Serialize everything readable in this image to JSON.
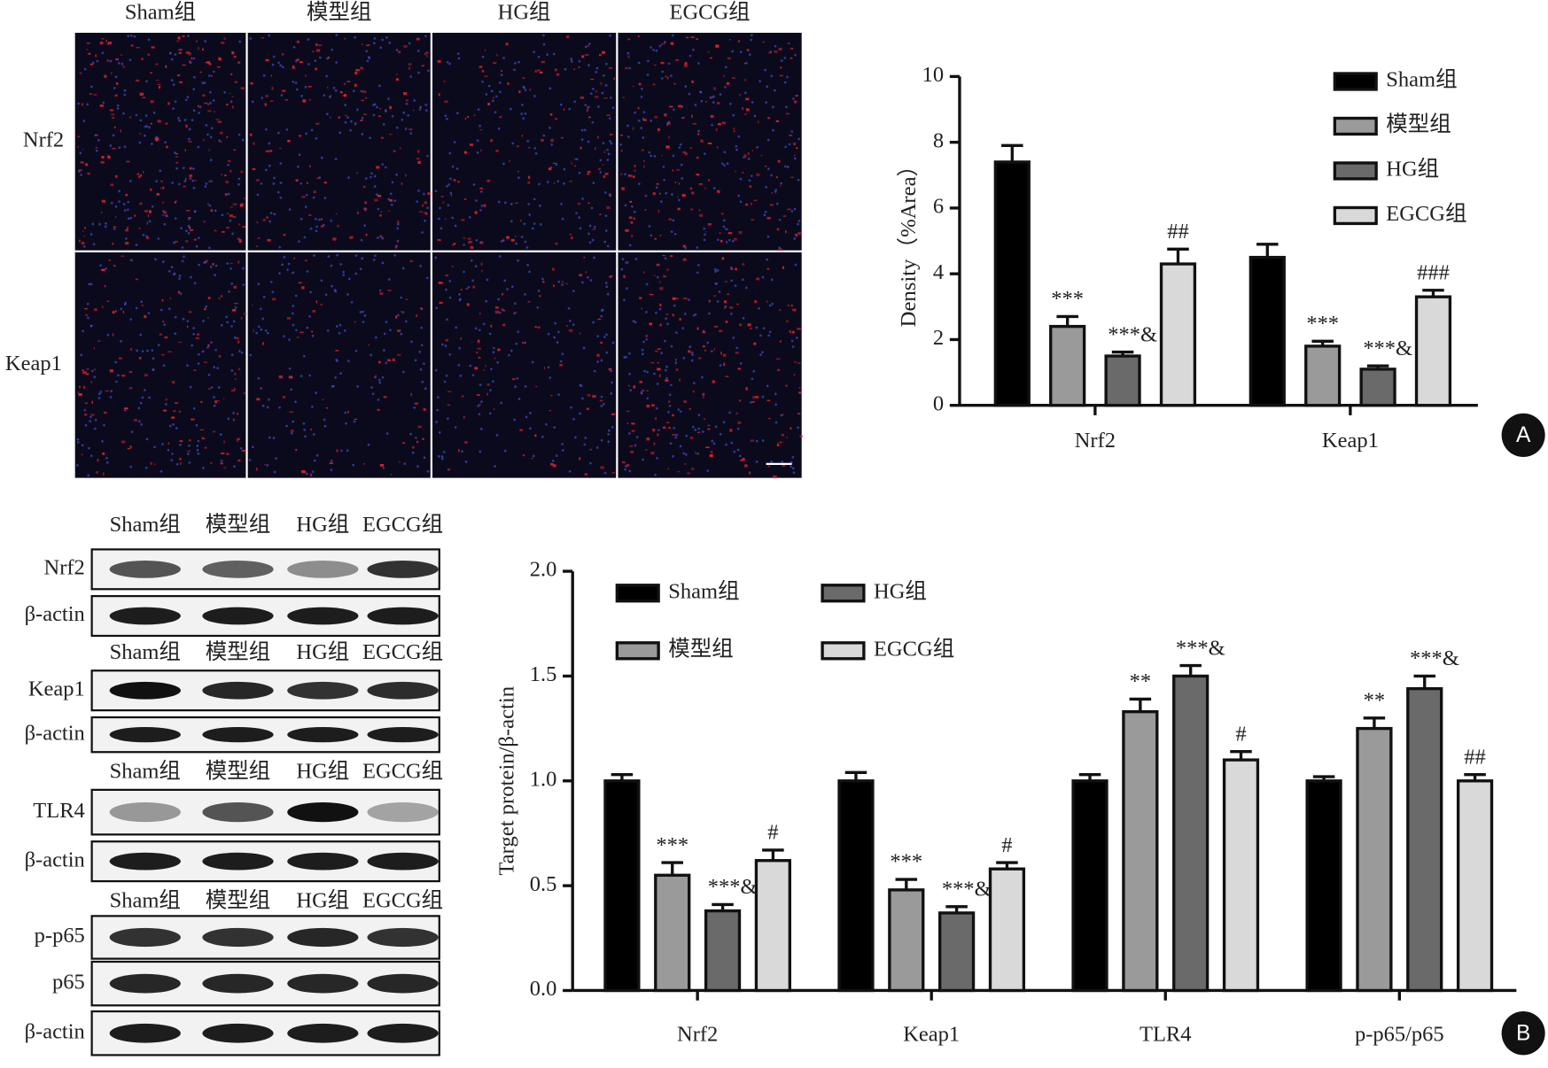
{
  "chart_data": [
    {
      "type": "bar",
      "ylabel": "Density（%Area）",
      "categories": [
        "Nrf2",
        "Keap1"
      ],
      "ylim": [
        0,
        10
      ],
      "yticks": [
        0,
        2,
        4,
        6,
        8,
        10
      ],
      "legend": "top-right",
      "panel_label": "A",
      "series": [
        {
          "name": "Sham组",
          "color": "#000000",
          "values": [
            7.4,
            4.5
          ],
          "errors": [
            0.5,
            0.4
          ],
          "annotations": [
            null,
            null
          ]
        },
        {
          "name": "模型组",
          "color": "#9a9a9a",
          "values": [
            2.4,
            1.8
          ],
          "errors": [
            0.3,
            0.15
          ],
          "annotations": [
            "***",
            "***"
          ]
        },
        {
          "name": "HG组",
          "color": "#6a6a6a",
          "values": [
            1.5,
            1.1
          ],
          "errors": [
            0.12,
            0.1
          ],
          "annotations": [
            "***&",
            "***&"
          ]
        },
        {
          "name": "EGCG组",
          "color": "#d9d9d9",
          "values": [
            4.3,
            3.3
          ],
          "errors": [
            0.45,
            0.2
          ],
          "annotations": [
            "##",
            "###"
          ]
        }
      ]
    },
    {
      "type": "bar",
      "ylabel": "Target protein/β-actin",
      "categories": [
        "Nrf2",
        "Keap1",
        "TLR4",
        "p-p65/p65"
      ],
      "ylim": [
        0,
        2
      ],
      "yticks": [
        {
          "value": 0,
          "label": "0.0"
        },
        0.5,
        {
          "value": 1,
          "label": "1.0"
        },
        1.5,
        {
          "value": 2,
          "label": "2.0"
        }
      ],
      "legend": "top-left",
      "panel_label": "B",
      "series": [
        {
          "name": "Sham组",
          "color": "#000000",
          "values": [
            1,
            1,
            1,
            1
          ],
          "errors": [
            0.03,
            0.04,
            0.03,
            0.02
          ],
          "annotations": [
            null,
            null,
            null,
            null
          ]
        },
        {
          "name": "模型组",
          "color": "#9a9a9a",
          "values": [
            0.55,
            0.48,
            1.33,
            1.25
          ],
          "errors": [
            0.06,
            0.05,
            0.06,
            0.05
          ],
          "annotations": [
            "***",
            "***",
            "**",
            "**"
          ]
        },
        {
          "name": "HG组",
          "color": "#6a6a6a",
          "values": [
            0.38,
            0.37,
            1.5,
            1.44
          ],
          "errors": [
            0.03,
            0.03,
            0.05,
            0.06
          ],
          "annotations": [
            "***&",
            "***&",
            "***&",
            "***&"
          ]
        },
        {
          "name": "EGCG组",
          "color": "#d9d9d9",
          "values": [
            0.62,
            0.58,
            1.1,
            1.0
          ],
          "errors": [
            0.05,
            0.03,
            0.04,
            0.03
          ],
          "annotations": [
            "#",
            "#",
            "#",
            "##"
          ]
        }
      ]
    }
  ],
  "microscopy": {
    "columns": [
      "Sham组",
      "模型组",
      "HG组",
      "EGCG组"
    ],
    "rows": [
      "Nrf2",
      "Keap1"
    ]
  },
  "western_blot": {
    "groups": [
      {
        "columns": [
          "Sham组",
          "模型组",
          "HG组",
          "EGCG组"
        ],
        "rows": [
          "Nrf2",
          "β-actin"
        ]
      },
      {
        "columns": [
          "Sham组",
          "模型组",
          "HG组",
          "EGCG组"
        ],
        "rows": [
          "Keap1",
          "β-actin"
        ]
      },
      {
        "columns": [
          "Sham组",
          "模型组",
          "HG组",
          "EGCG组"
        ],
        "rows": [
          "TLR4",
          "β-actin"
        ]
      },
      {
        "columns": [
          "Sham组",
          "模型组",
          "HG组",
          "EGCG组"
        ],
        "rows": [
          "p-p65",
          "p65",
          "β-actin"
        ]
      }
    ]
  }
}
